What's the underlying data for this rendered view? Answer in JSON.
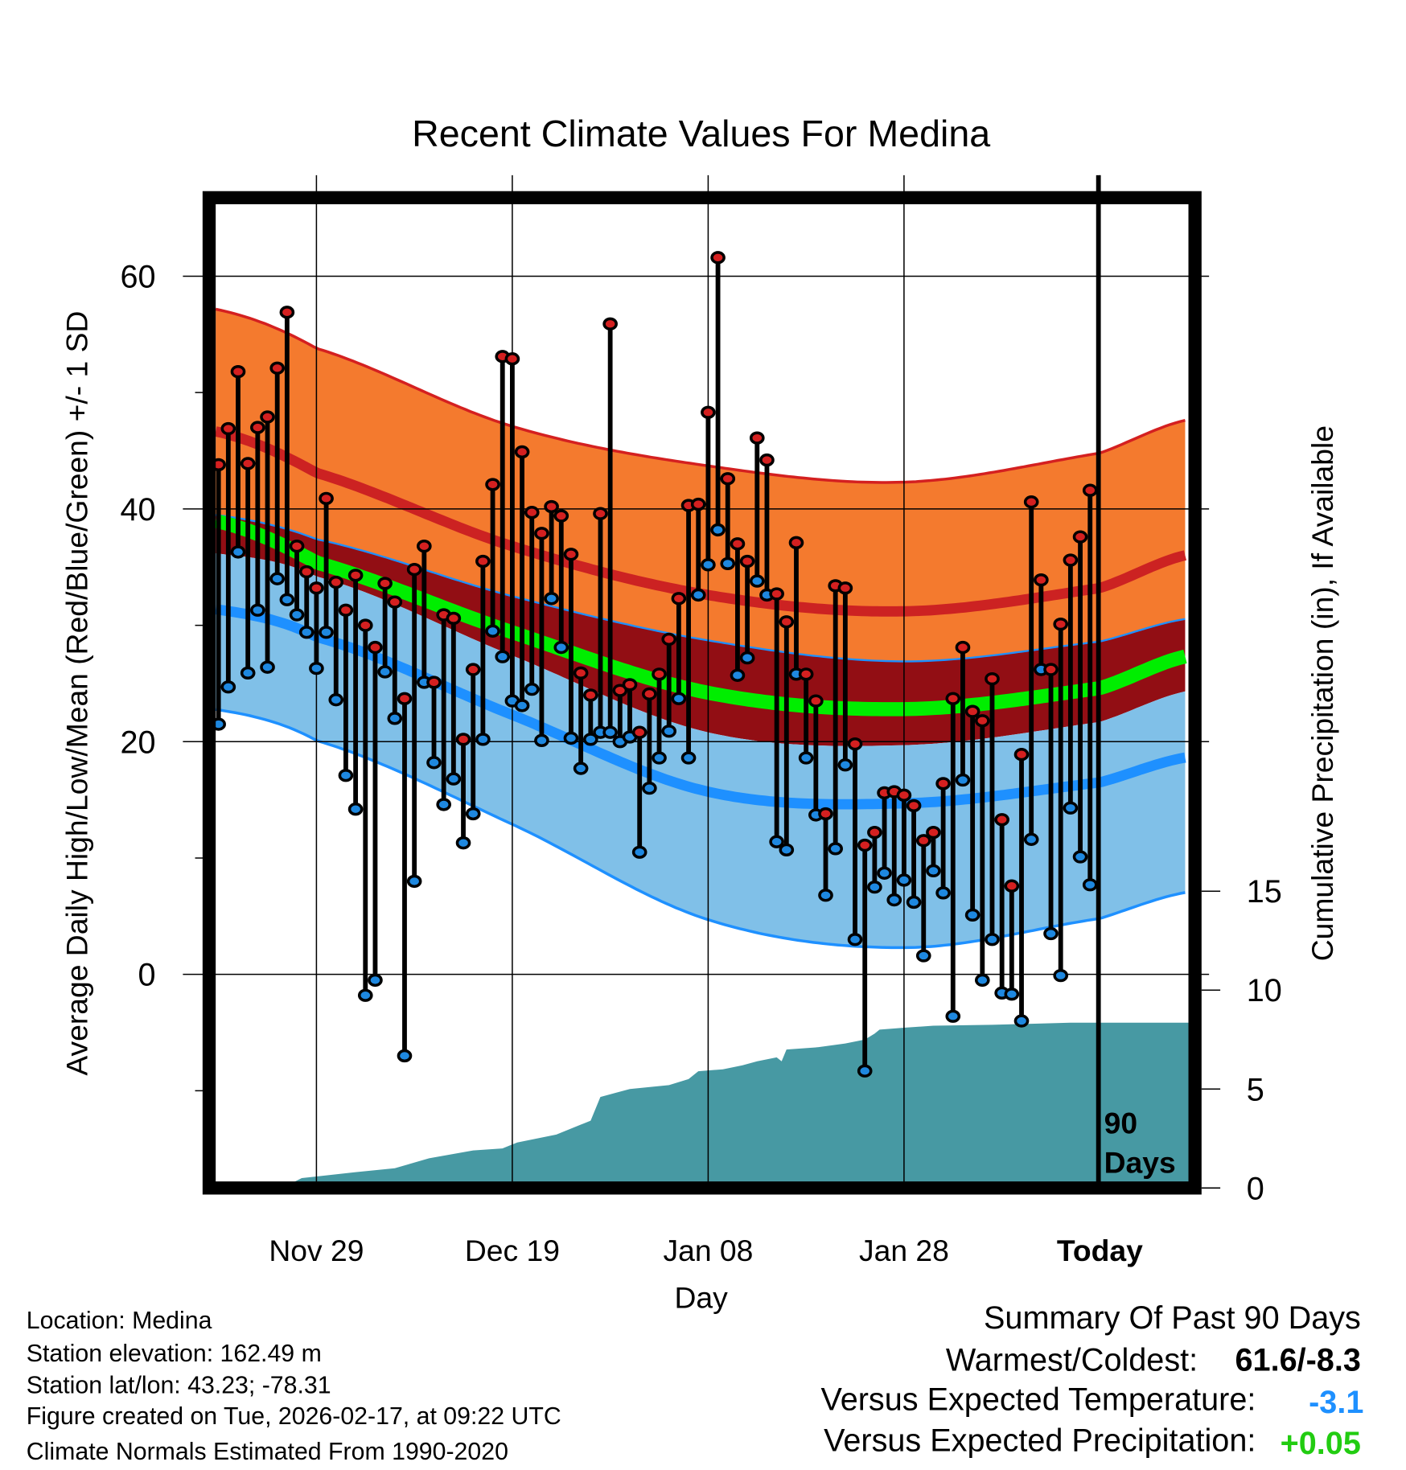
{
  "chart_data": {
    "type": "line",
    "title": "Recent Climate Values For Medina",
    "xlabel": "Day",
    "ylabel": "Average Daily High/Low/Mean (Red/Blue/Green) +/- 1 SD",
    "ylabel_right": "Cumulative Precipitation (in), If Available",
    "ylim": [
      -18,
      67
    ],
    "ylim_right": [
      0,
      50
    ],
    "grid": true,
    "start_date": "Nov 19",
    "x_ticks": [
      {
        "day": 10,
        "label": "Nov 29"
      },
      {
        "day": 30,
        "label": "Dec 19"
      },
      {
        "day": 50,
        "label": "Jan 08"
      },
      {
        "day": 70,
        "label": "Jan 28"
      },
      {
        "day": 90,
        "label": "Today"
      }
    ],
    "y_ticks": [
      60,
      40,
      20,
      0
    ],
    "y_minor_ticks": [
      50,
      30,
      10,
      -10
    ],
    "y_ticks_right": [
      0,
      5,
      10,
      15
    ],
    "period_label": [
      "90",
      "Days"
    ],
    "daily_high": [
      43.8,
      46.9,
      51.8,
      43.9,
      47.0,
      47.9,
      52.1,
      56.9,
      36.8,
      34.6,
      33.2,
      40.9,
      33.7,
      31.3,
      34.3,
      30.0,
      28.1,
      33.6,
      32.0,
      23.7,
      34.8,
      36.8,
      25.1,
      30.9,
      30.6,
      20.2,
      26.2,
      35.5,
      42.1,
      53.1,
      52.9,
      44.9,
      39.7,
      37.9,
      40.2,
      39.4,
      36.1,
      25.9,
      24.0,
      39.6,
      55.9,
      24.4,
      24.9,
      20.8,
      24.1,
      25.8,
      28.8,
      32.3,
      40.3,
      40.4,
      48.3,
      61.6,
      42.6,
      37.0,
      35.5,
      46.1,
      44.2,
      32.7,
      30.3,
      37.1,
      25.8,
      23.5,
      13.8,
      33.4,
      33.2,
      19.8,
      11.1,
      12.2,
      15.6,
      15.7,
      15.4,
      14.5,
      11.5,
      12.2,
      16.4,
      23.7,
      28.1,
      22.6,
      21.8,
      25.4,
      13.3,
      7.6,
      18.9,
      40.6,
      33.9,
      26.2,
      30.1,
      35.6,
      37.6,
      41.6
    ],
    "daily_low": [
      21.5,
      24.7,
      36.3,
      25.9,
      31.3,
      26.4,
      34.0,
      32.2,
      30.9,
      29.4,
      26.3,
      29.4,
      23.6,
      17.1,
      14.2,
      -1.8,
      -0.5,
      26.0,
      22.0,
      -7.0,
      8.0,
      25.1,
      18.2,
      14.6,
      16.8,
      11.3,
      13.8,
      20.2,
      29.5,
      27.3,
      23.5,
      23.1,
      24.5,
      20.1,
      32.3,
      28.1,
      20.3,
      17.7,
      20.2,
      20.8,
      20.8,
      20.0,
      20.4,
      10.5,
      16.0,
      18.6,
      20.9,
      23.7,
      18.6,
      32.6,
      35.2,
      38.2,
      35.3,
      25.7,
      27.2,
      33.8,
      32.6,
      11.4,
      10.7,
      25.8,
      18.6,
      13.7,
      6.8,
      10.8,
      18.0,
      3.0,
      -8.3,
      7.5,
      8.7,
      6.4,
      8.1,
      6.2,
      1.6,
      8.9,
      7.0,
      -3.6,
      16.7,
      5.1,
      -0.5,
      3.0,
      -1.6,
      -1.7,
      -4.0,
      11.6,
      26.2,
      3.5,
      -0.1,
      14.3,
      10.1,
      7.7
    ],
    "normals": {
      "days": [
        -0.5,
        10,
        30,
        50,
        70,
        90,
        99.2
      ],
      "high_plus_sd": [
        57.2,
        53.8,
        47.1,
        43.7,
        42.3,
        44.8,
        47.7
      ],
      "high_mean": [
        46.7,
        43.1,
        36.8,
        32.6,
        31.2,
        33.2,
        36.1
      ],
      "low_plus_sd": [
        39.5,
        37.4,
        32.5,
        28.7,
        26.9,
        28.6,
        30.6
      ],
      "mean": [
        39.0,
        35.4,
        29.4,
        24.2,
        22.8,
        24.6,
        27.4
      ],
      "high_minus_sd": [
        36.2,
        34.2,
        27.4,
        20.8,
        19.7,
        21.7,
        24.4
      ],
      "low_mean": [
        31.4,
        29.0,
        22.3,
        15.7,
        14.7,
        16.5,
        18.7
      ],
      "low_minus_sd": [
        22.8,
        20.1,
        12.9,
        4.7,
        2.3,
        4.8,
        7.1
      ]
    },
    "cumulative_precip": [
      [
        -0.5,
        0
      ],
      [
        6.5,
        0
      ],
      [
        8.5,
        0.5
      ],
      [
        14,
        0.8
      ],
      [
        18,
        1.0
      ],
      [
        21.5,
        1.5
      ],
      [
        26,
        1.9
      ],
      [
        29,
        2.0
      ],
      [
        30.5,
        2.3
      ],
      [
        34.5,
        2.7
      ],
      [
        37,
        3.2
      ],
      [
        38,
        3.4
      ],
      [
        39,
        4.6
      ],
      [
        42,
        5.0
      ],
      [
        46,
        5.2
      ],
      [
        48,
        5.5
      ],
      [
        49,
        5.9
      ],
      [
        51.5,
        6.0
      ],
      [
        53.5,
        6.2
      ],
      [
        55,
        6.4
      ],
      [
        57,
        6.6
      ],
      [
        57.5,
        6.4
      ],
      [
        58,
        7.0
      ],
      [
        61,
        7.1
      ],
      [
        64,
        7.3
      ],
      [
        66,
        7.5
      ],
      [
        67,
        7.8
      ],
      [
        67.5,
        8.0
      ],
      [
        70,
        8.1
      ],
      [
        73,
        8.2
      ],
      [
        79,
        8.25
      ],
      [
        83,
        8.3
      ],
      [
        87,
        8.35
      ],
      [
        99.2,
        8.35
      ]
    ],
    "colors": {
      "high": "#d42020",
      "low": "#1e88e0",
      "mean": "#00ee00",
      "orange": "#f47a2e",
      "darkred": "#920e14",
      "lightblue": "#80c0e8",
      "blue": "#1e90ff",
      "precip": "#4799a3"
    }
  },
  "info": {
    "location": "Location: Medina",
    "elevation": "Station elevation: 162.49 m",
    "latlon": "Station lat/lon: 43.23; -78.31",
    "created": "Figure created on Tue, 2026-02-17, at 09:22 UTC",
    "normals": "Climate Normals Estimated From 1990-2020"
  },
  "summary": {
    "title": "Summary Of Past 90 Days",
    "warmest_label": "Warmest/Coldest:",
    "warmest_value": "61.6/-8.3",
    "temp_label": "Versus Expected Temperature:",
    "temp_value": "-3.1",
    "temp_color": "#1e90ff",
    "precip_label": "Versus Expected Precipitation:",
    "precip_value": "+0.05",
    "precip_color": "#22cc11"
  }
}
